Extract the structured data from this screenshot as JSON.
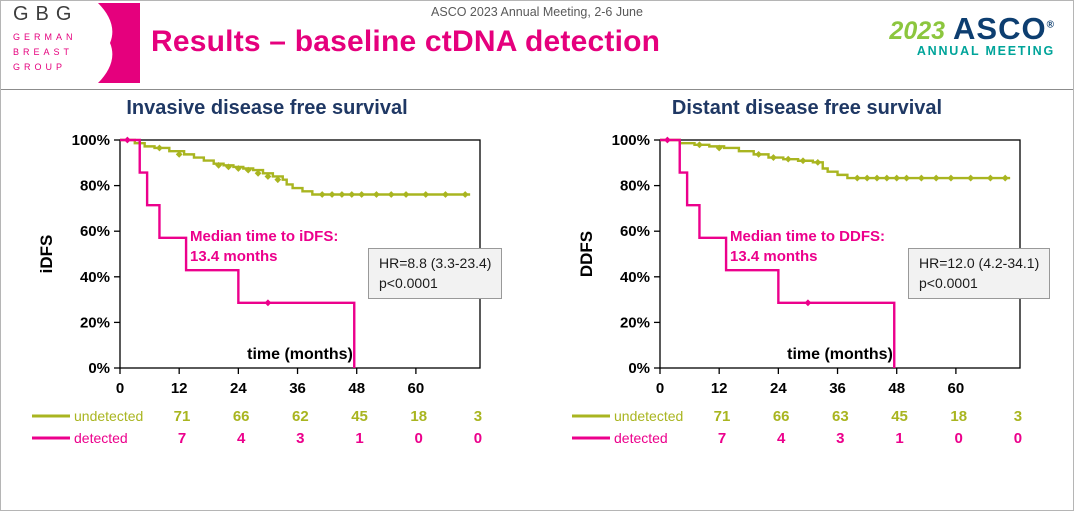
{
  "header": {
    "meeting_line": "ASCO 2023 Annual Meeting, 2-6 June",
    "title": "Results – baseline ctDNA detection",
    "gbg_logo": {
      "acronym": "GBG",
      "line1": "GERMAN",
      "line2": "BREAST",
      "line3": "GROUP"
    },
    "asco_logo": {
      "year": "2023",
      "org": "ASCO",
      "reg": "®",
      "sub": "ANNUAL MEETING"
    }
  },
  "colors": {
    "undetected_olive": "#a9b520",
    "detected_magenta": "#ec008c",
    "title_pink": "#e5007d",
    "panel_title_blue": "#1f3864"
  },
  "chart_data": [
    {
      "type": "line",
      "subtype": "kaplan-meier",
      "title": "Invasive disease free survival",
      "ylabel": "iDFS",
      "xlabel": "time (months)",
      "xlim": [
        0,
        73
      ],
      "ylim": [
        0,
        100
      ],
      "xticks": [
        0,
        12,
        24,
        36,
        48,
        60
      ],
      "ytick_labels": [
        "100%",
        "80%",
        "60%",
        "40%",
        "20%",
        "0%"
      ],
      "series": [
        {
          "name": "undetected",
          "color": "#a9b520",
          "points": [
            [
              0,
              100
            ],
            [
              3,
              98.6
            ],
            [
              5,
              97.2
            ],
            [
              7,
              96.5
            ],
            [
              10,
              95.1
            ],
            [
              13,
              93.7
            ],
            [
              15,
              92.3
            ],
            [
              17,
              91
            ],
            [
              19,
              89.6
            ],
            [
              21,
              88.9
            ],
            [
              23,
              88.2
            ],
            [
              25,
              87.5
            ],
            [
              27,
              86.8
            ],
            [
              29,
              85.4
            ],
            [
              31,
              84
            ],
            [
              33,
              82.6
            ],
            [
              33.8,
              80.5
            ],
            [
              35,
              78.9
            ],
            [
              37,
              77.5
            ],
            [
              39,
              76.1
            ],
            [
              71,
              76.1
            ]
          ],
          "censor": [
            [
              8,
              96.5
            ],
            [
              12,
              93.7
            ],
            [
              20,
              88.9
            ],
            [
              22,
              88.2
            ],
            [
              24,
              87.5
            ],
            [
              26,
              86.8
            ],
            [
              28,
              85.4
            ],
            [
              30,
              84
            ],
            [
              32,
              82.6
            ],
            [
              41,
              76.1
            ],
            [
              43,
              76.1
            ],
            [
              45,
              76.1
            ],
            [
              47,
              76.1
            ],
            [
              49,
              76.1
            ],
            [
              52,
              76.1
            ],
            [
              55,
              76.1
            ],
            [
              58,
              76.1
            ],
            [
              62,
              76.1
            ],
            [
              66,
              76.1
            ],
            [
              70,
              76.1
            ]
          ]
        },
        {
          "name": "detected",
          "color": "#ec008c",
          "points": [
            [
              0,
              100
            ],
            [
              4,
              85.7
            ],
            [
              5.5,
              71.4
            ],
            [
              8,
              57.1
            ],
            [
              13.4,
              42.9
            ],
            [
              24,
              28.6
            ],
            [
              47.5,
              0
            ]
          ],
          "censor": [
            [
              1.5,
              100
            ],
            [
              30,
              28.6
            ]
          ]
        }
      ],
      "annotation": {
        "line1": "Median time to iDFS:",
        "line2": "13.4 months"
      },
      "hr_box": {
        "line1": "HR=8.8 (3.3-23.4)",
        "line2": "p<0.0001"
      },
      "risk_table": [
        {
          "label": "undetected",
          "color": "#a9b520",
          "values": [
            71,
            66,
            62,
            45,
            18,
            3
          ]
        },
        {
          "label": "detected",
          "color": "#ec008c",
          "values": [
            7,
            4,
            3,
            1,
            0,
            0
          ]
        }
      ]
    },
    {
      "type": "line",
      "subtype": "kaplan-meier",
      "title": "Distant disease free survival",
      "ylabel": "DDFS",
      "xlabel": "time (months)",
      "xlim": [
        0,
        73
      ],
      "ylim": [
        0,
        100
      ],
      "xticks": [
        0,
        12,
        24,
        36,
        48,
        60
      ],
      "ytick_labels": [
        "100%",
        "80%",
        "60%",
        "40%",
        "20%",
        "0%"
      ],
      "series": [
        {
          "name": "undetected",
          "color": "#a9b520",
          "points": [
            [
              0,
              100
            ],
            [
              4,
              98.6
            ],
            [
              7,
              97.9
            ],
            [
              10,
              97.2
            ],
            [
              13,
              96.5
            ],
            [
              16,
              95.1
            ],
            [
              19,
              93.7
            ],
            [
              22,
              92.3
            ],
            [
              25,
              91.6
            ],
            [
              28,
              90.9
            ],
            [
              31,
              90.2
            ],
            [
              33,
              87.5
            ],
            [
              34,
              86.1
            ],
            [
              36,
              84.7
            ],
            [
              38,
              83.3
            ],
            [
              71,
              83.3
            ]
          ],
          "censor": [
            [
              8,
              97.9
            ],
            [
              12,
              96.5
            ],
            [
              20,
              93.7
            ],
            [
              23,
              92.3
            ],
            [
              26,
              91.6
            ],
            [
              29,
              90.9
            ],
            [
              32,
              90.2
            ],
            [
              40,
              83.3
            ],
            [
              42,
              83.3
            ],
            [
              44,
              83.3
            ],
            [
              46,
              83.3
            ],
            [
              48,
              83.3
            ],
            [
              50,
              83.3
            ],
            [
              53,
              83.3
            ],
            [
              56,
              83.3
            ],
            [
              59,
              83.3
            ],
            [
              63,
              83.3
            ],
            [
              67,
              83.3
            ],
            [
              70,
              83.3
            ]
          ]
        },
        {
          "name": "detected",
          "color": "#ec008c",
          "points": [
            [
              0,
              100
            ],
            [
              4,
              85.7
            ],
            [
              5.5,
              71.4
            ],
            [
              8,
              57.1
            ],
            [
              13.4,
              42.9
            ],
            [
              24,
              28.6
            ],
            [
              47.5,
              0
            ]
          ],
          "censor": [
            [
              1.5,
              100
            ],
            [
              30,
              28.6
            ]
          ]
        }
      ],
      "annotation": {
        "line1": "Median time to DDFS:",
        "line2": "13.4 months"
      },
      "hr_box": {
        "line1": "HR=12.0 (4.2-34.1)",
        "line2": "p<0.0001"
      },
      "risk_table": [
        {
          "label": "undetected",
          "color": "#a9b520",
          "values": [
            71,
            66,
            63,
            45,
            18,
            3
          ]
        },
        {
          "label": "detected",
          "color": "#ec008c",
          "values": [
            7,
            4,
            3,
            1,
            0,
            0
          ]
        }
      ]
    }
  ]
}
